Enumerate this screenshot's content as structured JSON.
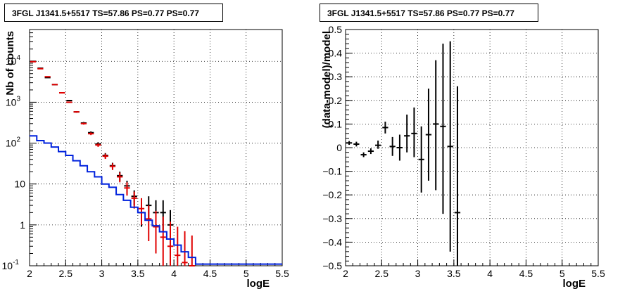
{
  "panels": {
    "left": {
      "title": "3FGL J1341.5+5517 TS=57.86 PS=0.77 PS=0.77"
    },
    "right": {
      "title": "3FGL J1341.5+5517 TS=57.86 PS=0.77 PS=0.77"
    }
  },
  "colors": {
    "data": "#000000",
    "model_points": "#e00000",
    "model_line": "#0022dd",
    "frame": "#000000"
  },
  "chart_data": [
    {
      "type": "scatter",
      "title": "3FGL J1341.5+5517 TS=57.86 PS=0.77 PS=0.77",
      "xlabel": "logE",
      "ylabel": "Nb of counts",
      "xlim": [
        2,
        5.5
      ],
      "ylim": [
        0.1,
        60000
      ],
      "yscale": "log",
      "grid": true,
      "xticks": [
        "2",
        "2.5",
        "3",
        "3.5",
        "4",
        "4.5",
        "5",
        "5.5"
      ],
      "yticks": [
        {
          "value": 0.1,
          "label": "10",
          "exp": "-1"
        },
        {
          "value": 1,
          "label": "1",
          "exp": ""
        },
        {
          "value": 10,
          "label": "10",
          "exp": ""
        },
        {
          "value": 100,
          "label": "10",
          "exp": "2"
        },
        {
          "value": 1000,
          "label": "10",
          "exp": "3"
        },
        {
          "value": 10000,
          "label": "10",
          "exp": "4"
        }
      ],
      "series": [
        {
          "marker": "cross-errorbar",
          "color": "#000000",
          "points": [
            {
              "x": 2.05,
              "y": 10000,
              "lo": 9900,
              "hi": 10100
            },
            {
              "x": 2.15,
              "y": 6800,
              "lo": 6700,
              "hi": 6900
            },
            {
              "x": 2.25,
              "y": 4000,
              "lo": 3930,
              "hi": 4070
            },
            {
              "x": 2.35,
              "y": 2700,
              "lo": 2650,
              "hi": 2750
            },
            {
              "x": 2.45,
              "y": 1700,
              "lo": 1660,
              "hi": 1740
            },
            {
              "x": 2.55,
              "y": 1100,
              "lo": 1060,
              "hi": 1140
            },
            {
              "x": 2.65,
              "y": 580,
              "lo": 556,
              "hi": 604
            },
            {
              "x": 2.75,
              "y": 310,
              "lo": 292,
              "hi": 328
            },
            {
              "x": 2.85,
              "y": 180,
              "lo": 167,
              "hi": 193
            },
            {
              "x": 2.95,
              "y": 95,
              "lo": 85,
              "hi": 105
            },
            {
              "x": 3.05,
              "y": 50,
              "lo": 43,
              "hi": 57
            },
            {
              "x": 3.15,
              "y": 28,
              "lo": 23,
              "hi": 33
            },
            {
              "x": 3.25,
              "y": 16,
              "lo": 12,
              "hi": 20
            },
            {
              "x": 3.35,
              "y": 9,
              "lo": 6,
              "hi": 12
            },
            {
              "x": 3.45,
              "y": 5,
              "lo": 3,
              "hi": 7
            },
            {
              "x": 3.55,
              "y": 2,
              "lo": 0.9,
              "hi": 3.5
            },
            {
              "x": 3.65,
              "y": 3,
              "lo": 1.3,
              "hi": 5
            },
            {
              "x": 3.75,
              "y": 2,
              "lo": 0.7,
              "hi": 4
            },
            {
              "x": 3.85,
              "y": 2,
              "lo": 0.7,
              "hi": 4
            },
            {
              "x": 3.95,
              "y": 1,
              "lo": 0.2,
              "hi": 2.3
            }
          ]
        },
        {
          "marker": "cross-errorbar",
          "color": "#e00000",
          "points": [
            {
              "x": 2.05,
              "y": 9800,
              "lo": 9700,
              "hi": 9900
            },
            {
              "x": 2.15,
              "y": 6600,
              "lo": 6520,
              "hi": 6680
            },
            {
              "x": 2.25,
              "y": 4200,
              "lo": 4130,
              "hi": 4270
            },
            {
              "x": 2.35,
              "y": 2700,
              "lo": 2650,
              "hi": 2750
            },
            {
              "x": 2.45,
              "y": 1700,
              "lo": 1660,
              "hi": 1740
            },
            {
              "x": 2.55,
              "y": 1000,
              "lo": 968,
              "hi": 1032
            },
            {
              "x": 2.65,
              "y": 580,
              "lo": 556,
              "hi": 604
            },
            {
              "x": 2.75,
              "y": 300,
              "lo": 283,
              "hi": 317
            },
            {
              "x": 2.85,
              "y": 170,
              "lo": 157,
              "hi": 183
            },
            {
              "x": 2.95,
              "y": 90,
              "lo": 81,
              "hi": 99
            },
            {
              "x": 3.05,
              "y": 48,
              "lo": 41,
              "hi": 55
            },
            {
              "x": 3.15,
              "y": 27,
              "lo": 22,
              "hi": 32
            },
            {
              "x": 3.25,
              "y": 15,
              "lo": 11,
              "hi": 19
            },
            {
              "x": 3.35,
              "y": 8,
              "lo": 5.2,
              "hi": 11
            },
            {
              "x": 3.45,
              "y": 4.5,
              "lo": 2.5,
              "hi": 6.5
            },
            {
              "x": 3.55,
              "y": 2.5,
              "lo": 1.0,
              "hi": 4.5
            },
            {
              "x": 3.65,
              "y": 1.4,
              "lo": 0.4,
              "hi": 3
            },
            {
              "x": 3.75,
              "y": 0.9,
              "lo": 0.2,
              "hi": 2.2
            },
            {
              "x": 3.85,
              "y": 0.5,
              "lo": 0.1,
              "hi": 1.6
            },
            {
              "x": 3.95,
              "y": 0.3,
              "lo": 0.1,
              "hi": 1.2
            },
            {
              "x": 4.05,
              "y": 0.18,
              "lo": 0.1,
              "hi": 0.9
            },
            {
              "x": 4.15,
              "y": 0.12,
              "lo": 0.1,
              "hi": 0.7
            },
            {
              "x": 4.25,
              "y": 0.1,
              "lo": 0.1,
              "hi": 0.55
            }
          ]
        },
        {
          "marker": "step-line",
          "color": "#0022dd",
          "edges": [
            2.0,
            2.1,
            2.2,
            2.3,
            2.4,
            2.5,
            2.6,
            2.7,
            2.8,
            2.9,
            3.0,
            3.1,
            3.2,
            3.3,
            3.4,
            3.5,
            3.6,
            3.7,
            3.8,
            3.9,
            4.0,
            4.1,
            4.2,
            4.3,
            5.5
          ],
          "values": [
            150,
            115,
            100,
            80,
            62,
            50,
            37,
            28,
            20,
            15,
            10,
            8.3,
            5.5,
            4.0,
            2.7,
            2.0,
            1.3,
            0.95,
            0.68,
            0.45,
            0.32,
            0.22,
            0.16,
            0.11
          ]
        }
      ]
    },
    {
      "type": "scatter",
      "title": "3FGL J1341.5+5517 TS=57.86 PS=0.77 PS=0.77",
      "xlabel": "logE",
      "ylabel": "(data-model)/model",
      "xlim": [
        2,
        5.5
      ],
      "ylim": [
        -0.5,
        0.5
      ],
      "grid": true,
      "xticks": [
        "2",
        "2.5",
        "3",
        "3.5",
        "4",
        "4.5",
        "5",
        "5.5"
      ],
      "yticks": [
        "−0.5",
        "−0.4",
        "−0.3",
        "−0.2",
        "−0.1",
        "0",
        "0.1",
        "0.2",
        "0.3",
        "0.4",
        "0.5"
      ],
      "series": [
        {
          "marker": "cross-errorbar",
          "color": "#000000",
          "points": [
            {
              "x": 2.05,
              "y": 0.02,
              "lo": 0.012,
              "hi": 0.028
            },
            {
              "x": 2.15,
              "y": 0.015,
              "lo": 0.005,
              "hi": 0.025
            },
            {
              "x": 2.25,
              "y": -0.03,
              "lo": -0.04,
              "hi": -0.02
            },
            {
              "x": 2.35,
              "y": -0.015,
              "lo": -0.027,
              "hi": -0.003
            },
            {
              "x": 2.45,
              "y": 0.01,
              "lo": -0.005,
              "hi": 0.03
            },
            {
              "x": 2.55,
              "y": 0.085,
              "lo": 0.06,
              "hi": 0.11
            },
            {
              "x": 2.65,
              "y": 0.005,
              "lo": -0.035,
              "hi": 0.045
            },
            {
              "x": 2.75,
              "y": 0.0,
              "lo": -0.055,
              "hi": 0.055
            },
            {
              "x": 2.85,
              "y": 0.05,
              "lo": -0.02,
              "hi": 0.14
            },
            {
              "x": 2.95,
              "y": 0.06,
              "lo": -0.04,
              "hi": 0.17
            },
            {
              "x": 3.05,
              "y": -0.05,
              "lo": -0.19,
              "hi": 0.09
            },
            {
              "x": 3.15,
              "y": 0.055,
              "lo": -0.14,
              "hi": 0.25
            },
            {
              "x": 3.25,
              "y": 0.1,
              "lo": -0.18,
              "hi": 0.37
            },
            {
              "x": 3.35,
              "y": 0.09,
              "lo": -0.28,
              "hi": 0.44
            },
            {
              "x": 3.45,
              "y": 0.005,
              "lo": -0.44,
              "hi": 0.45
            },
            {
              "x": 3.55,
              "y": -0.275,
              "lo": -0.5,
              "hi": 0.26
            }
          ]
        }
      ]
    }
  ]
}
